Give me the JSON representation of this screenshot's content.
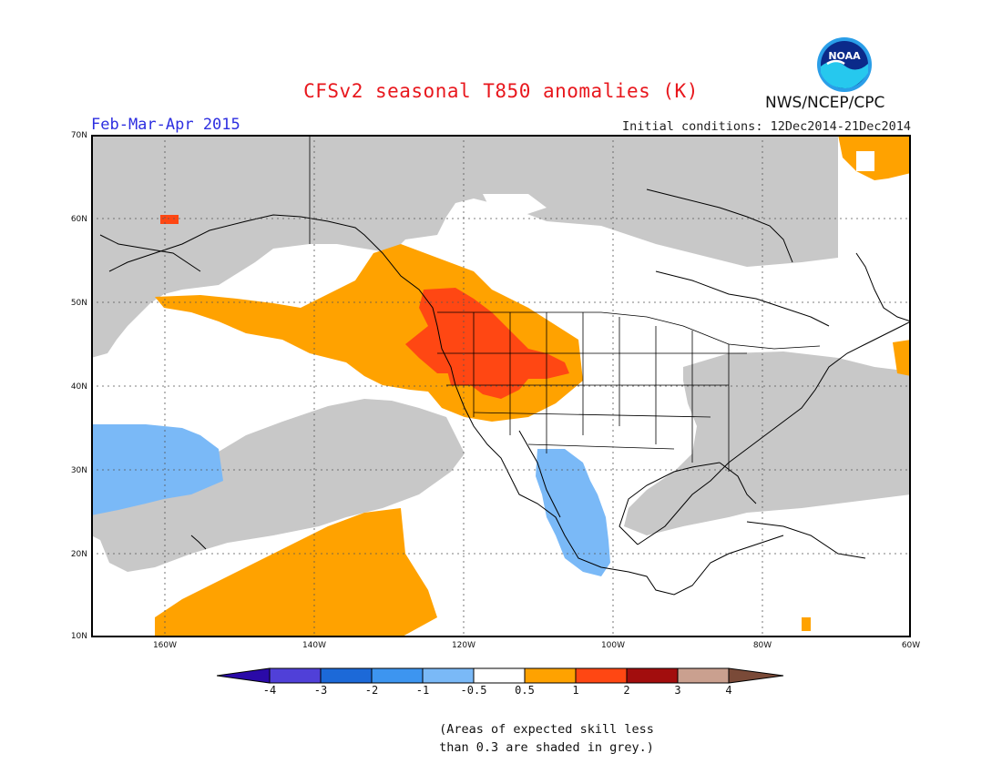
{
  "header": {
    "title": "CFSv2 seasonal T850 anomalies (K)",
    "period": "Feb-Mar-Apr 2015",
    "initial_conditions": "Initial conditions: 12Dec2014-21Dec2014",
    "agency": "NWS/NCEP/CPC",
    "logo_text": "NOAA"
  },
  "map": {
    "lat_labels": [
      "70N",
      "60N",
      "50N",
      "40N",
      "30N",
      "20N",
      "10N"
    ],
    "lon_labels": [
      "160W",
      "140W",
      "120W",
      "100W",
      "80W",
      "60W"
    ],
    "grid": true,
    "colors": {
      "skill_grey": "#c8c8c8",
      "warm_05_1": "#ffa200",
      "warm_1_2": "#ff4713",
      "cool_minus1_minus05": "#7ab9f7",
      "land_lines": "#000000"
    }
  },
  "colorbar": {
    "labels": [
      "-4",
      "-3",
      "-2",
      "-1",
      "-0.5",
      "0.5",
      "1",
      "2",
      "3",
      "4"
    ],
    "colors": [
      "#2a0aa8",
      "#5040d8",
      "#1c69d8",
      "#3d95f0",
      "#7ab9f7",
      "#ffffff",
      "#ffa200",
      "#ff4713",
      "#a20d0d",
      "#caa08f",
      "#7a4a38"
    ]
  },
  "note": {
    "line1": "(Areas of expected skill less",
    "line2": "than 0.3 are shaded in grey.)"
  }
}
